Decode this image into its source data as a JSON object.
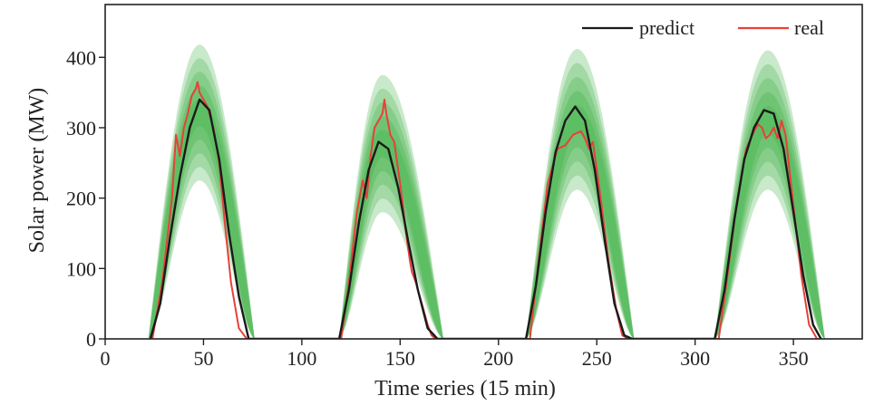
{
  "chart_data": {
    "type": "line",
    "title": "",
    "xlabel": "Time series (15 min)",
    "ylabel": "Solar power (MW)",
    "xlim": [
      0,
      385
    ],
    "ylim": [
      0,
      475
    ],
    "xticks": [
      0,
      50,
      100,
      150,
      200,
      250,
      300,
      350
    ],
    "yticks": [
      0,
      100,
      200,
      300,
      400
    ],
    "grid": false,
    "legend_position": "top-right",
    "colors": {
      "predict": "#1a1a1a",
      "real": "#e8403a",
      "band": "#3cb043"
    },
    "series": [
      {
        "name": "predict",
        "x": [
          23,
          28,
          33,
          38,
          43,
          48,
          53,
          58,
          63,
          68,
          73,
          119,
          124,
          129,
          134,
          139,
          144,
          149,
          154,
          159,
          164,
          169,
          214,
          219,
          224,
          229,
          234,
          239,
          244,
          249,
          254,
          259,
          264,
          268,
          310,
          315,
          320,
          325,
          330,
          335,
          340,
          345,
          350,
          355,
          360,
          364
        ],
        "y": [
          0,
          50,
          145,
          230,
          300,
          340,
          325,
          255,
          150,
          60,
          0,
          0,
          70,
          165,
          240,
          280,
          270,
          215,
          140,
          70,
          15,
          0,
          0,
          75,
          180,
          265,
          310,
          330,
          310,
          240,
          140,
          50,
          5,
          0,
          0,
          70,
          170,
          255,
          300,
          325,
          320,
          270,
          180,
          90,
          20,
          0
        ]
      },
      {
        "name": "real",
        "x": [
          24,
          29,
          34,
          36,
          38,
          40,
          42,
          44,
          46,
          47,
          48,
          50,
          52,
          55,
          58,
          61,
          64,
          68,
          72,
          120,
          124,
          128,
          131,
          133,
          135,
          137,
          139,
          141,
          142,
          143,
          145,
          147,
          149,
          151,
          153,
          155,
          156,
          158,
          160,
          162,
          164,
          166,
          168,
          216,
          220,
          225,
          230,
          234,
          238,
          242,
          244,
          246,
          248,
          250,
          252,
          256,
          260,
          263,
          266,
          312,
          316,
          321,
          326,
          330,
          332,
          334,
          336,
          338,
          340,
          342,
          344,
          346,
          350,
          354,
          358,
          362
        ],
        "y": [
          0,
          80,
          200,
          290,
          260,
          300,
          320,
          345,
          355,
          365,
          350,
          340,
          330,
          300,
          250,
          160,
          80,
          15,
          0,
          0,
          80,
          180,
          225,
          200,
          260,
          300,
          310,
          320,
          340,
          320,
          290,
          280,
          240,
          200,
          150,
          110,
          95,
          80,
          60,
          40,
          20,
          5,
          0,
          0,
          100,
          220,
          270,
          275,
          290,
          295,
          285,
          270,
          280,
          240,
          200,
          110,
          40,
          5,
          0,
          0,
          80,
          190,
          270,
          295,
          305,
          300,
          285,
          290,
          300,
          285,
          310,
          290,
          190,
          90,
          20,
          0
        ]
      }
    ],
    "uncertainty_bands": {
      "label": "",
      "humps": [
        {
          "start": 22,
          "peak": 48,
          "end": 76,
          "upper": 418,
          "lower": 225,
          "tail": 55
        },
        {
          "start": 119,
          "peak": 141,
          "end": 172,
          "upper": 375,
          "lower": 180,
          "tail": 60
        },
        {
          "start": 214,
          "peak": 240,
          "end": 269,
          "upper": 412,
          "lower": 212,
          "tail": 50
        },
        {
          "start": 310,
          "peak": 337,
          "end": 366,
          "upper": 410,
          "lower": 212,
          "tail": 50
        }
      ]
    }
  }
}
